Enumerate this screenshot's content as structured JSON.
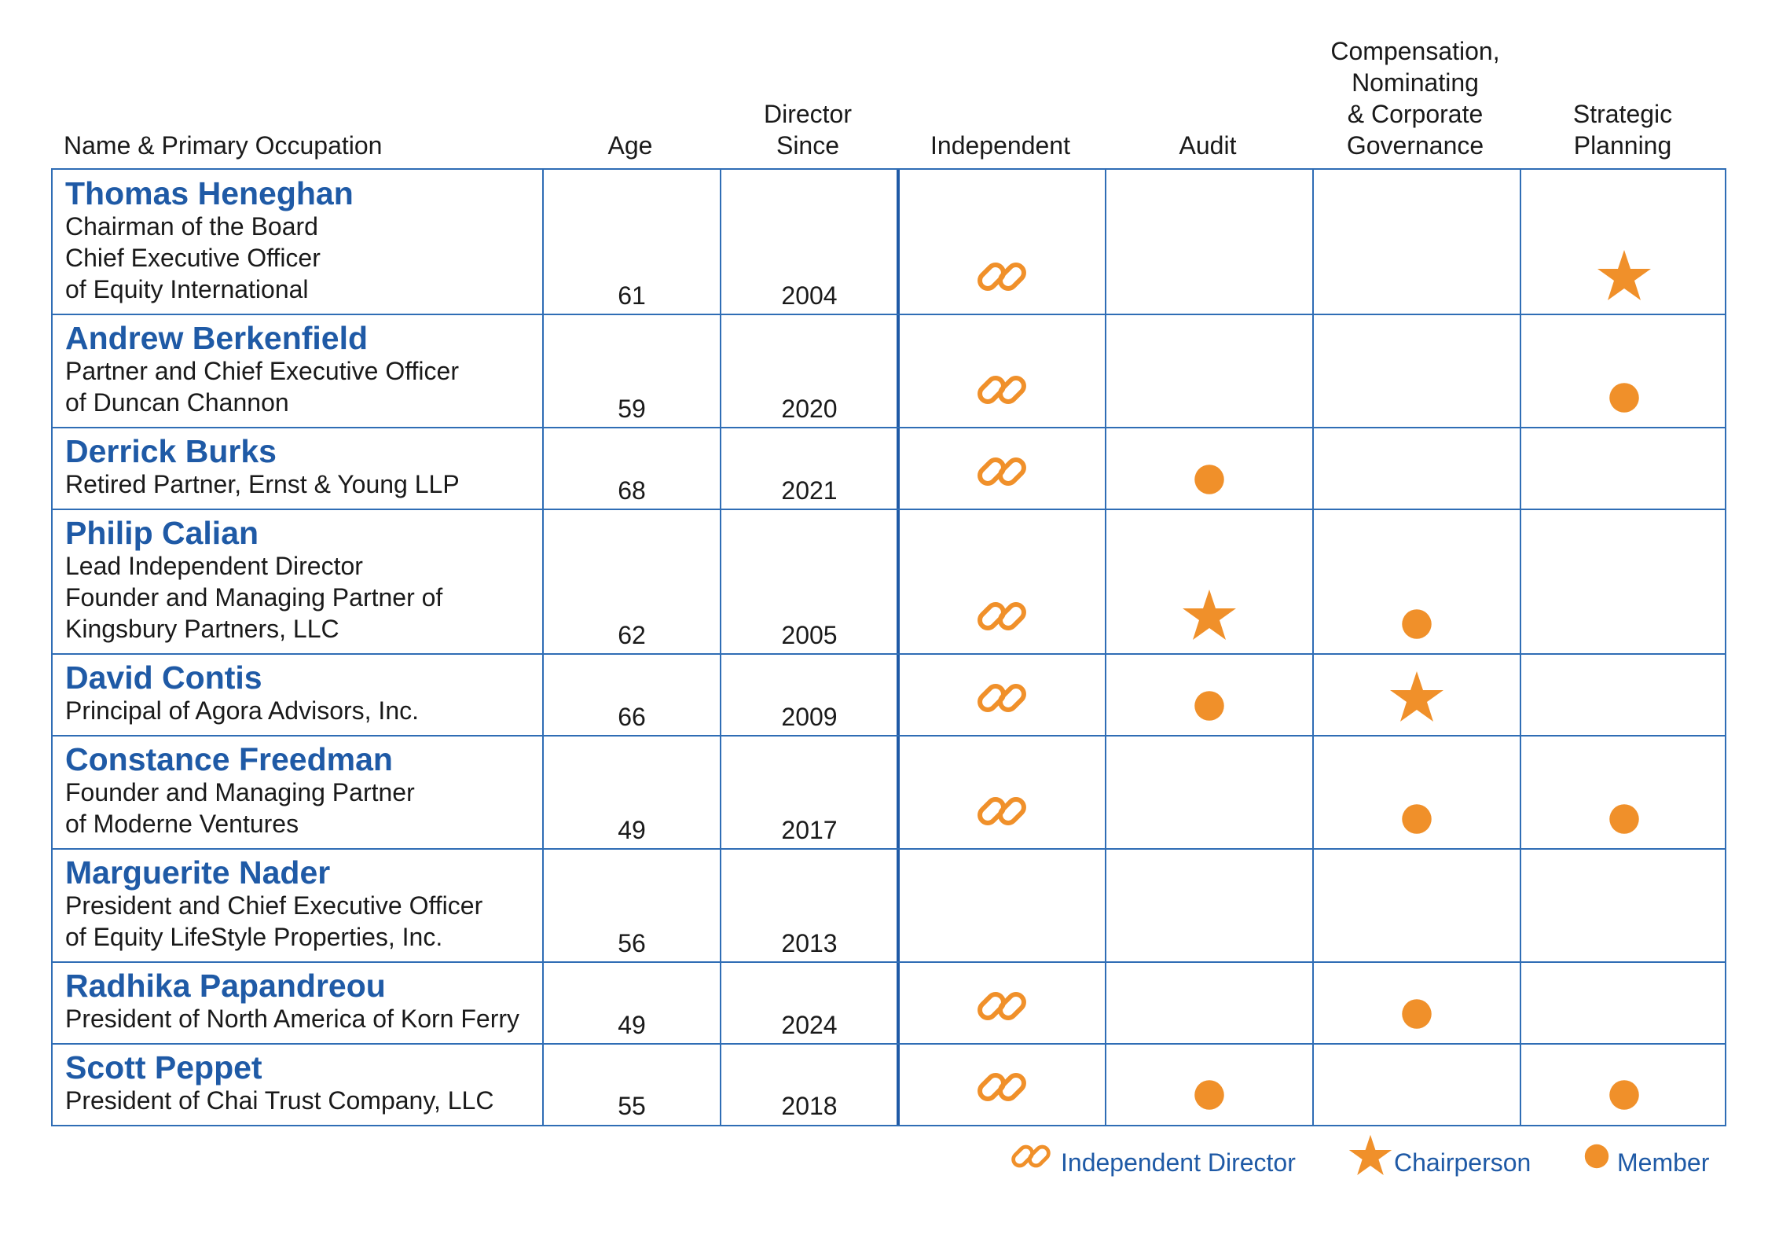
{
  "headers": {
    "name": "Name & Primary Occupation",
    "age": "Age",
    "director_since": [
      "Director",
      "Since"
    ],
    "independent": "Independent",
    "audit": "Audit",
    "compensation": [
      "Compensation,",
      "Nominating",
      "& Corporate",
      "Governance"
    ],
    "strategic": [
      "Strategic",
      "Planning"
    ]
  },
  "directors": [
    {
      "name": "Thomas Heneghan",
      "occupation": [
        "Chairman of the Board",
        "Chief Executive Officer",
        "of Equity International"
      ],
      "age": "61",
      "since": "2004",
      "independent": "link",
      "audit": "",
      "compensation": "",
      "strategic": "star"
    },
    {
      "name": "Andrew Berkenfield",
      "occupation": [
        "Partner and Chief Executive Officer",
        "of Duncan Channon"
      ],
      "age": "59",
      "since": "2020",
      "independent": "link",
      "audit": "",
      "compensation": "",
      "strategic": "dot"
    },
    {
      "name": "Derrick Burks",
      "occupation": [
        "Retired Partner, Ernst & Young LLP"
      ],
      "age": "68",
      "since": "2021",
      "independent": "link",
      "audit": "dot",
      "compensation": "",
      "strategic": ""
    },
    {
      "name": "Philip Calian",
      "occupation": [
        "Lead Independent Director",
        "Founder and Managing Partner of",
        "Kingsbury Partners, LLC"
      ],
      "age": "62",
      "since": "2005",
      "independent": "link",
      "audit": "star",
      "compensation": "dot",
      "strategic": ""
    },
    {
      "name": "David Contis",
      "occupation": [
        "Principal of Agora Advisors, Inc."
      ],
      "age": "66",
      "since": "2009",
      "independent": "link",
      "audit": "dot",
      "compensation": "star",
      "strategic": ""
    },
    {
      "name": "Constance Freedman",
      "occupation": [
        "Founder and Managing Partner",
        "of Moderne Ventures"
      ],
      "age": "49",
      "since": "2017",
      "independent": "link",
      "audit": "",
      "compensation": "dot",
      "strategic": "dot"
    },
    {
      "name": "Marguerite Nader",
      "occupation": [
        "President and Chief Executive Officer",
        "of Equity LifeStyle Properties, Inc."
      ],
      "age": "56",
      "since": "2013",
      "independent": "",
      "audit": "",
      "compensation": "",
      "strategic": ""
    },
    {
      "name": "Radhika Papandreou",
      "occupation": [
        "President of North America of Korn Ferry"
      ],
      "age": "49",
      "since": "2024",
      "independent": "link",
      "audit": "",
      "compensation": "dot",
      "strategic": ""
    },
    {
      "name": "Scott Peppet",
      "occupation": [
        "President of Chai Trust Company, LLC"
      ],
      "age": "55",
      "since": "2018",
      "independent": "link",
      "audit": "dot",
      "compensation": "",
      "strategic": "dot"
    }
  ],
  "legend": {
    "independent": "Independent Director",
    "chair": "Chairperson",
    "member": "Member"
  },
  "colors": {
    "accent": "#f0902a",
    "blue": "#1f5aa6",
    "border": "#2f6db5"
  }
}
